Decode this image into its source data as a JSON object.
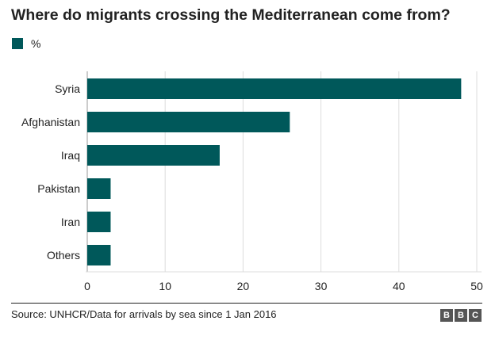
{
  "title": "Where do migrants crossing the Mediterranean come from?",
  "source": "Source: UNHCR/Data for arrivals by sea since 1 Jan 2016",
  "logo": [
    "B",
    "B",
    "C"
  ],
  "colors": {
    "bar": "#00585a",
    "grid": "#dddddd",
    "axis": "#999999",
    "text": "#222222",
    "logo": "#555555"
  },
  "chart_data": {
    "type": "bar",
    "orientation": "horizontal",
    "title": "Where do migrants crossing the Mediterranean come from?",
    "categories": [
      "Syria",
      "Afghanistan",
      "Iraq",
      "Pakistan",
      "Iran",
      "Others"
    ],
    "series": [
      {
        "name": "%",
        "values": [
          48,
          26,
          17,
          3,
          3,
          3
        ]
      }
    ],
    "xlim": [
      0,
      50
    ],
    "xticks": [
      0,
      10,
      20,
      30,
      40,
      50
    ],
    "xlabel": "",
    "ylabel": "",
    "grid": true,
    "legend_position": "top-left"
  }
}
